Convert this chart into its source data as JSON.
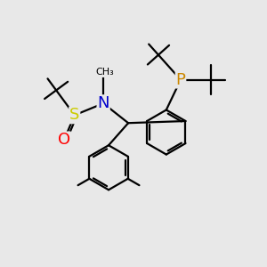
{
  "bg_color": "#e8e8e8",
  "bond_color": "#000000",
  "bond_lw": 1.6,
  "atom_colors": {
    "S": "#cccc00",
    "N": "#0000cc",
    "O": "#ff0000",
    "P": "#cc8800"
  },
  "figsize": [
    3.0,
    3.0
  ],
  "dpi": 100
}
